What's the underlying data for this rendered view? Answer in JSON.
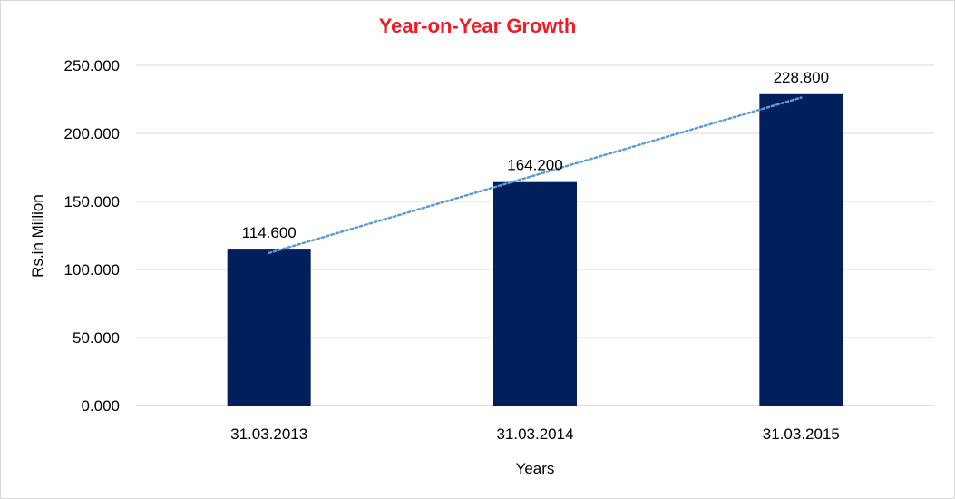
{
  "chart_data": {
    "type": "bar",
    "title": "Year-on-Year Growth",
    "xlabel": "Years",
    "ylabel": "Rs.in Million",
    "categories": [
      "31.03.2013",
      "31.03.2014",
      "31.03.2015"
    ],
    "values": [
      114.6,
      164.2,
      228.8
    ],
    "data_labels": [
      "114.600",
      "164.200",
      "228.800"
    ],
    "ylim": [
      0,
      250
    ],
    "y_ticks": [
      "0.000",
      "50.000",
      "100.000",
      "150.000",
      "200.000",
      "250.000"
    ],
    "y_tick_values": [
      0,
      50,
      100,
      150,
      200,
      250
    ],
    "grid": true,
    "trendline": "linear (dotted)",
    "colors": {
      "bar": "#001f5b",
      "trendline": "#5b9bd5",
      "title": "#ee1c25",
      "grid": "#d9d9d9"
    }
  }
}
